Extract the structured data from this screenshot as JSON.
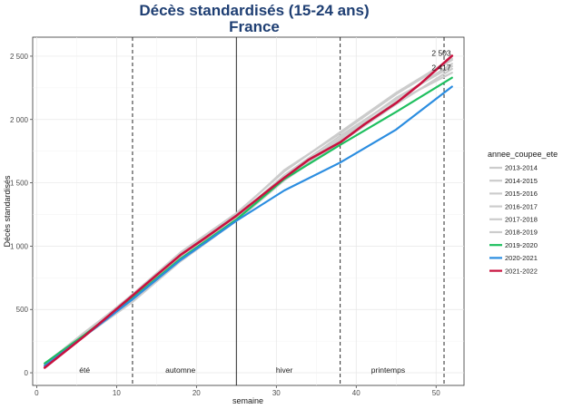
{
  "chart_data": {
    "type": "line",
    "title": "Décès standardisés (15-24 ans)",
    "subtitle": "France",
    "xlabel": "semaine",
    "ylabel": "Décès standardisés",
    "xlim": [
      -0.5,
      53.5
    ],
    "ylim": [
      -100,
      2650
    ],
    "x_ticks": [
      0,
      10,
      20,
      30,
      40,
      50
    ],
    "y_ticks": [
      0,
      500,
      1000,
      1500,
      2000,
      2500
    ],
    "y_tick_labels": [
      "0",
      "500",
      "1 000",
      "1 500",
      "2 000",
      "2 500"
    ],
    "grid": true,
    "legend_title": "annee_coupee_ete",
    "legend_position": "right",
    "vlines": [
      {
        "x": 12,
        "style": "dashed"
      },
      {
        "x": 25,
        "style": "solid"
      },
      {
        "x": 38,
        "style": "dashed"
      },
      {
        "x": 51,
        "style": "dashed"
      }
    ],
    "season_labels": [
      {
        "text": "été",
        "x": 6
      },
      {
        "text": "automne",
        "x": 18
      },
      {
        "text": "hiver",
        "x": 31
      },
      {
        "text": "printemps",
        "x": 44
      }
    ],
    "annotations": [
      {
        "text": "2 503",
        "x": 51,
        "y": 2503
      },
      {
        "text": "2 417",
        "x": 51,
        "y": 2417
      }
    ],
    "series": [
      {
        "name": "2013-2014",
        "color": "#cccccc",
        "width": 2.2,
        "x": [
          1,
          6,
          12,
          18,
          25,
          31,
          38,
          45,
          52
        ],
        "y": [
          60,
          300,
          600,
          920,
          1230,
          1560,
          1870,
          2160,
          2440
        ]
      },
      {
        "name": "2014-2015",
        "color": "#cccccc",
        "width": 2.2,
        "x": [
          1,
          6,
          12,
          18,
          25,
          31,
          38,
          45,
          52
        ],
        "y": [
          55,
          310,
          620,
          950,
          1260,
          1590,
          1900,
          2210,
          2480
        ]
      },
      {
        "name": "2015-2016",
        "color": "#cccccc",
        "width": 2.2,
        "x": [
          1,
          6,
          12,
          18,
          25,
          31,
          38,
          45,
          52
        ],
        "y": [
          50,
          290,
          560,
          880,
          1200,
          1520,
          1820,
          2120,
          2400
        ]
      },
      {
        "name": "2016-2017",
        "color": "#cccccc",
        "width": 2.2,
        "x": [
          1,
          6,
          12,
          18,
          25,
          31,
          38,
          45,
          52
        ],
        "y": [
          70,
          320,
          610,
          930,
          1250,
          1600,
          1890,
          2200,
          2470
        ]
      },
      {
        "name": "2017-2018",
        "color": "#cccccc",
        "width": 2.2,
        "x": [
          1,
          6,
          12,
          18,
          25,
          31,
          38,
          45,
          52
        ],
        "y": [
          65,
          305,
          590,
          910,
          1220,
          1540,
          1850,
          2170,
          2420
        ]
      },
      {
        "name": "2018-2019",
        "color": "#cccccc",
        "width": 2.2,
        "x": [
          1,
          6,
          12,
          18,
          25,
          31,
          38,
          45,
          52
        ],
        "y": [
          60,
          295,
          580,
          900,
          1210,
          1530,
          1840,
          2140,
          2370
        ]
      },
      {
        "name": "2019-2020",
        "color": "#1fbf5f",
        "width": 2.2,
        "x": [
          1,
          6,
          12,
          18,
          25,
          31,
          38,
          45,
          52
        ],
        "y": [
          75,
          300,
          590,
          900,
          1210,
          1530,
          1800,
          2060,
          2330
        ]
      },
      {
        "name": "2020-2021",
        "color": "#2b8de0",
        "width": 2.2,
        "x": [
          1,
          6,
          12,
          18,
          25,
          31,
          38,
          45,
          52
        ],
        "y": [
          55,
          290,
          580,
          890,
          1200,
          1440,
          1660,
          1920,
          2260
        ]
      },
      {
        "name": "2021-2022",
        "color": "#c8123f",
        "width": 2.6,
        "x": [
          1,
          3,
          6,
          9,
          12,
          15,
          18,
          21,
          25,
          28,
          31,
          34,
          38,
          41,
          45,
          48,
          52
        ],
        "y": [
          40,
          140,
          290,
          450,
          610,
          770,
          930,
          1060,
          1240,
          1390,
          1540,
          1680,
          1820,
          1960,
          2130,
          2280,
          2503
        ]
      }
    ]
  }
}
